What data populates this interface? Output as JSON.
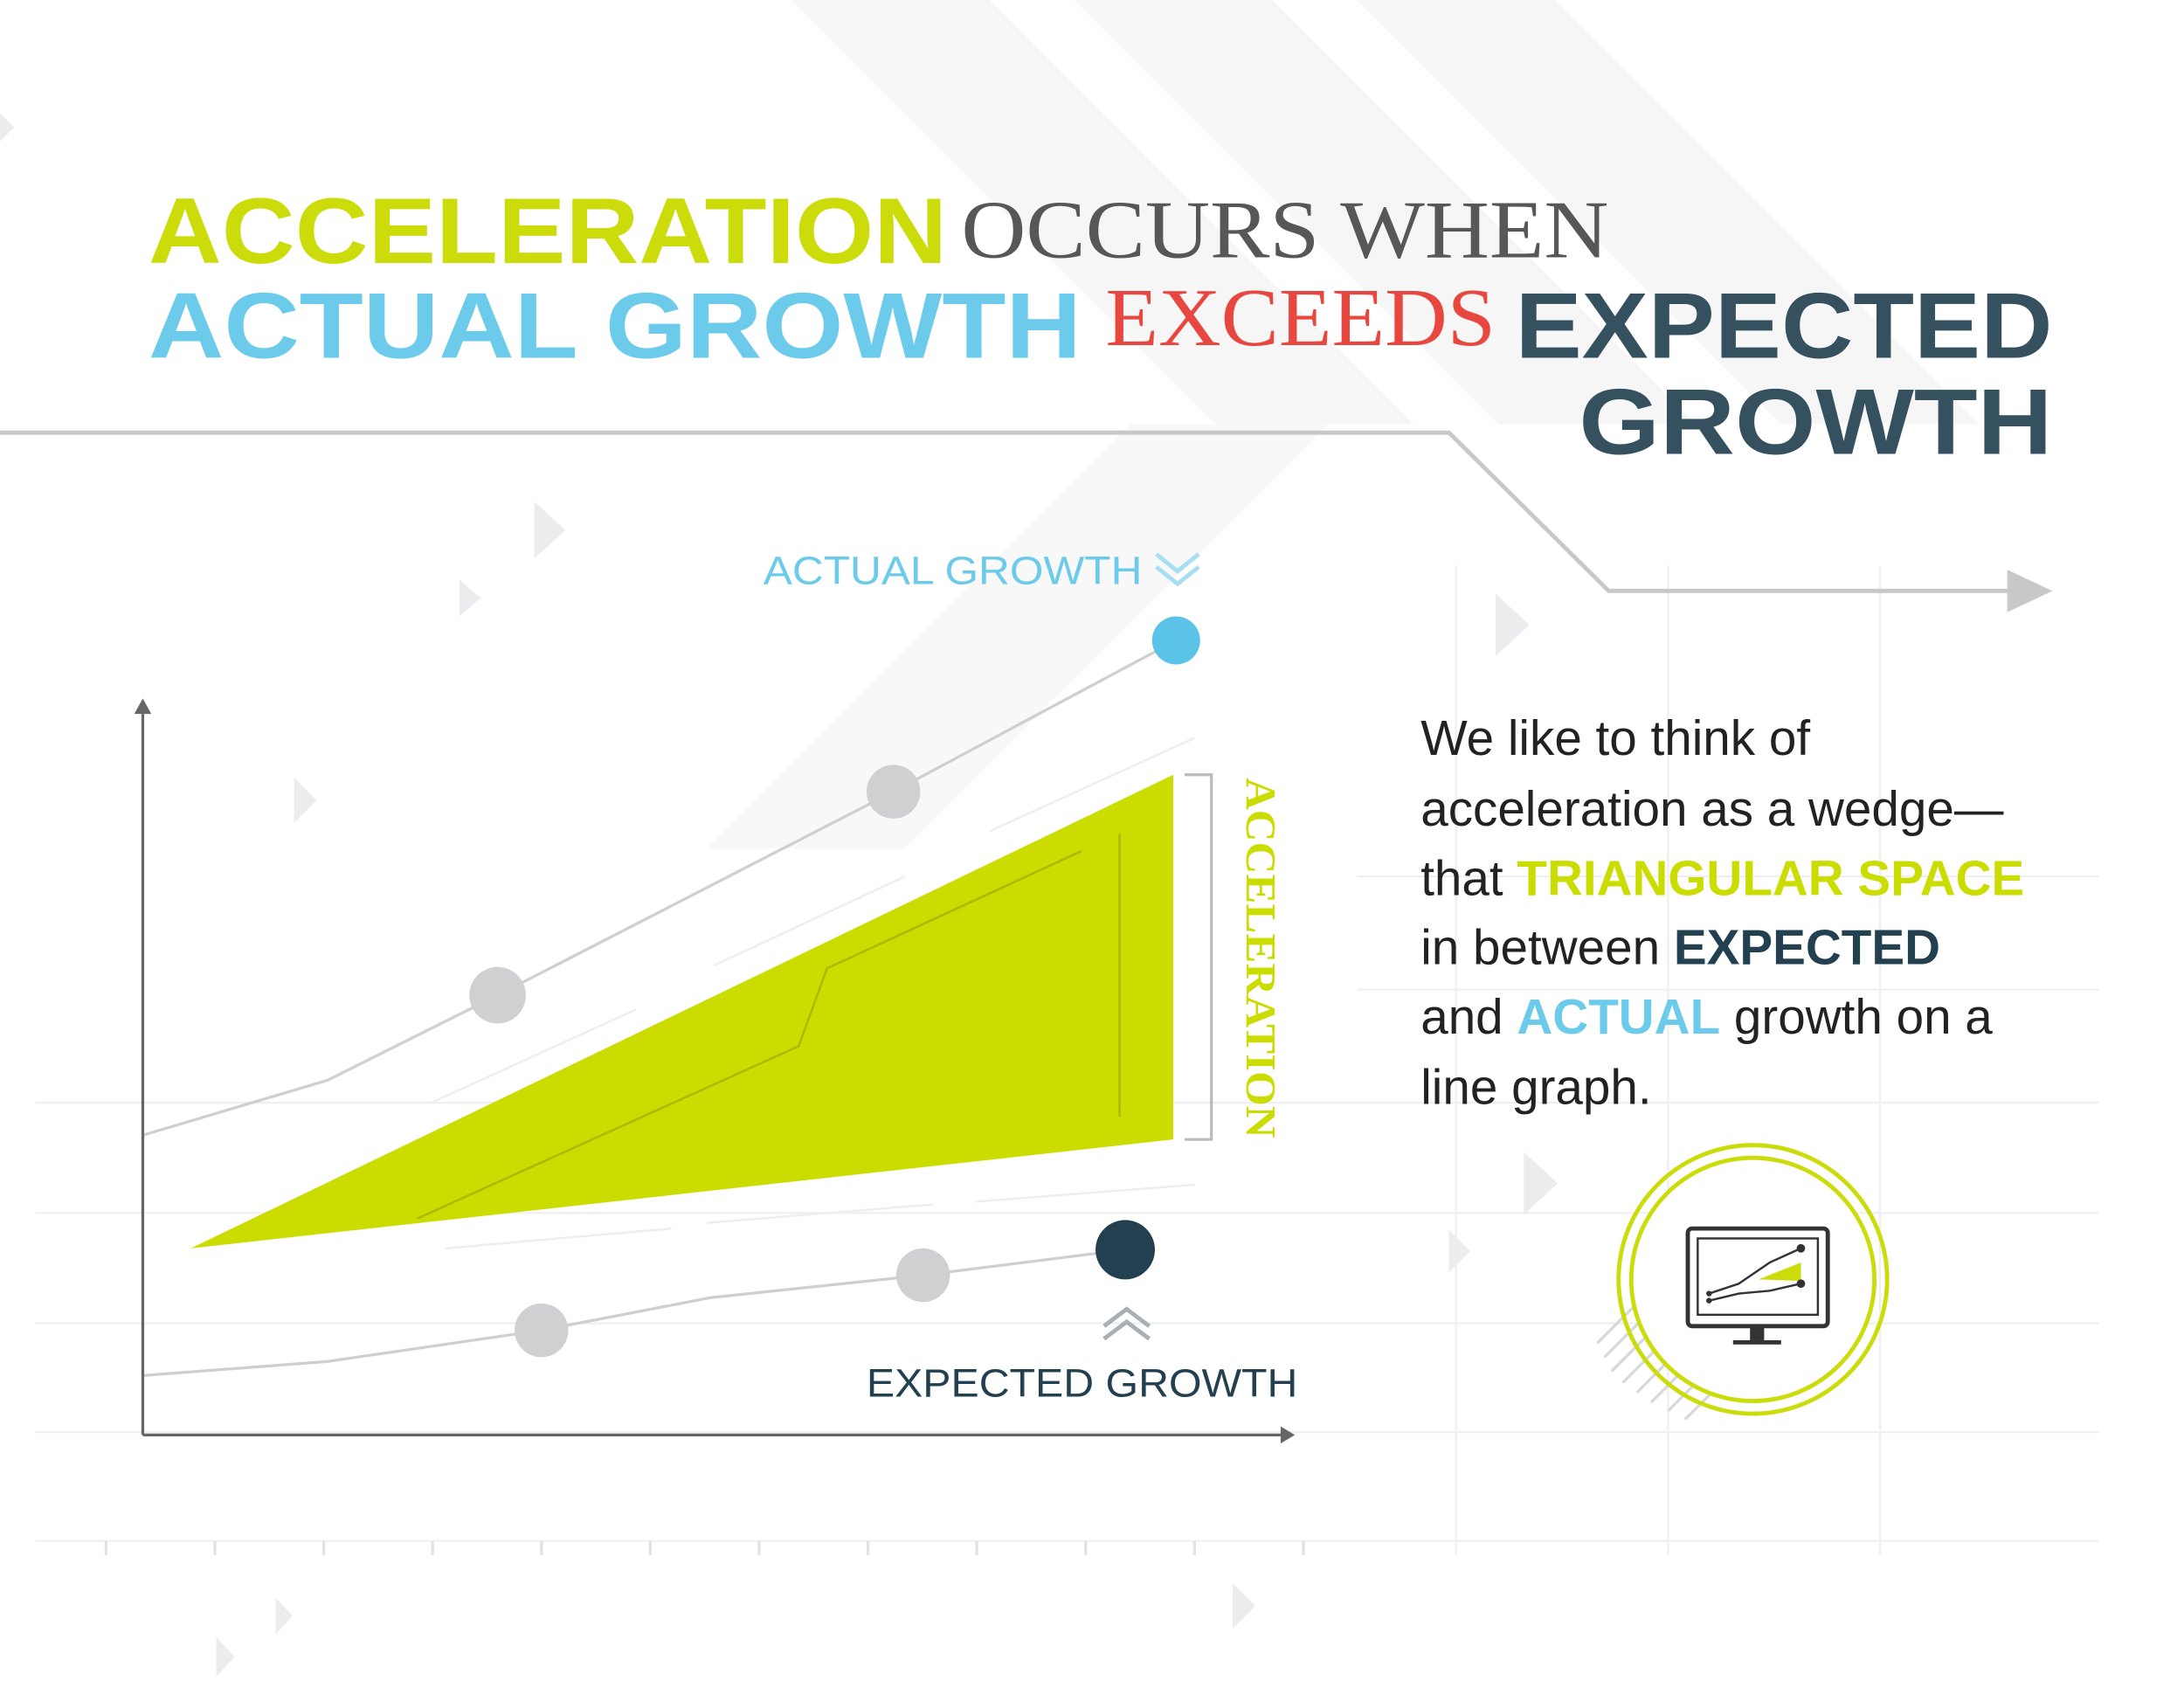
{
  "title": {
    "accent": "ACCELERATION",
    "rest": "OCCURS WHEN",
    "actual": "ACTUAL GROWTH",
    "verb": "EXCEEDS",
    "expected": "EXPECTED",
    "expected_end": "GROWTH"
  },
  "diagram": {
    "actual_label": "ACTUAL GROWTH",
    "expected_label": "EXPECTED GROWTH",
    "wedge_label": "ACCELERATION"
  },
  "description": {
    "lines": [
      [
        "We like to think of"
      ],
      [
        "acceleration as a wedge—"
      ],
      [
        "that ",
        "TRIANGULAR SPACE"
      ],
      [
        "in between ",
        "EXPECTED"
      ],
      [
        "and ",
        "ACTUAL",
        " growth on a"
      ],
      [
        "line graph."
      ]
    ]
  }
}
